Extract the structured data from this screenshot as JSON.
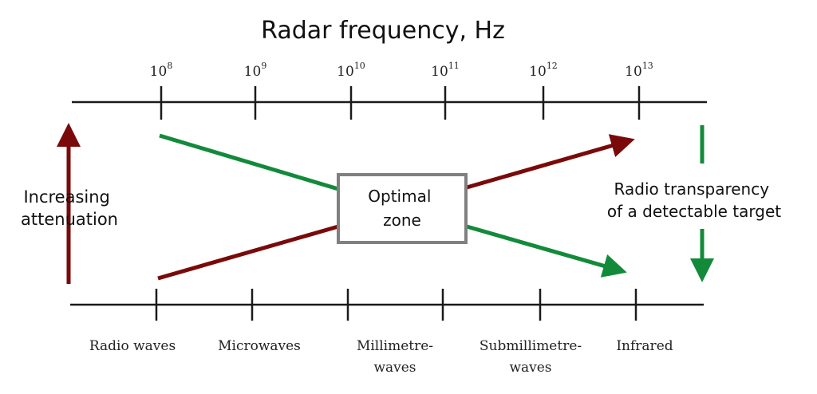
{
  "title": "Radar frequency, Hz",
  "frequency_ticks": [
    {
      "base": "10",
      "exp": "8"
    },
    {
      "base": "10",
      "exp": "9"
    },
    {
      "base": "10",
      "exp": "10"
    },
    {
      "base": "10",
      "exp": "11"
    },
    {
      "base": "10",
      "exp": "12"
    },
    {
      "base": "10",
      "exp": "13"
    }
  ],
  "bands": [
    {
      "lines": [
        "Radio waves"
      ]
    },
    {
      "lines": [
        "Microwaves"
      ]
    },
    {
      "lines": [
        "Millimetre-",
        "waves"
      ]
    },
    {
      "lines": [
        "Submillimetre-",
        "waves"
      ]
    },
    {
      "lines": [
        "Infrared"
      ]
    }
  ],
  "left_label": [
    "Increasing",
    "attenuation"
  ],
  "right_label": [
    "Radio transparency",
    "of a detectable target"
  ],
  "center_box": [
    "Optimal",
    "zone"
  ],
  "colors": {
    "attenuation": "#7a0a0a",
    "transparency": "#138a3a",
    "axis": "#1a1a1a",
    "box_border": "#808080"
  }
}
